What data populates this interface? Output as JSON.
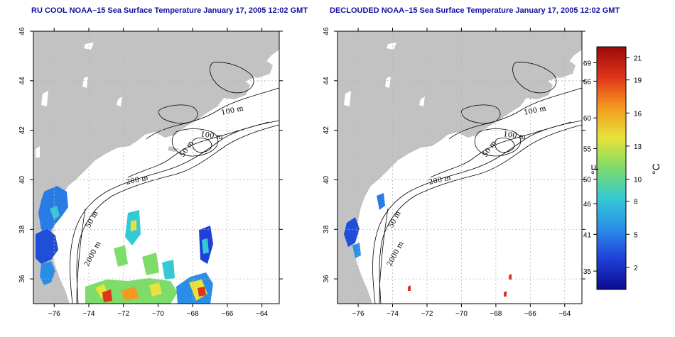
{
  "panels": [
    {
      "title": "RU COOL NOAA–15 Sea Surface Temperature January 17, 2005 12:02 GMT"
    },
    {
      "title": "DECLOUDED NOAA–15 Sea Surface Temperature January 17, 2005 12:02 GMT"
    }
  ],
  "axes": {
    "x_ticks": [
      "−76",
      "−74",
      "−72",
      "−70",
      "−68",
      "−66",
      "−64"
    ],
    "x_values": [
      -76,
      -74,
      -72,
      -70,
      -68,
      -66,
      -64
    ],
    "y_ticks": [
      "36",
      "38",
      "40",
      "42",
      "44",
      "46"
    ],
    "y_values": [
      36,
      38,
      40,
      42,
      44,
      46
    ],
    "lon_range": [
      -77.2,
      -63
    ],
    "lat_range": [
      35,
      46
    ]
  },
  "contour_labels": [
    "100 m",
    "100 m",
    "50 m",
    "200 m",
    "50 m",
    "2000 m"
  ],
  "colorbar": {
    "fahrenheit_label": "°F",
    "celsius_label": "°C",
    "fahrenheit_ticks": [
      "69",
      "66",
      "60",
      "55",
      "50",
      "46",
      "41",
      "35"
    ],
    "celsius_ticks": [
      "21",
      "19",
      "16",
      "13",
      "10",
      "8",
      "5",
      "2"
    ],
    "celsius_range": [
      0,
      22
    ],
    "colors": [
      "#0b0b8f",
      "#1f3fd8",
      "#2a8ee8",
      "#35c9d4",
      "#7ddc6a",
      "#e8e23a",
      "#f59a1f",
      "#e0341a",
      "#9c0a0a"
    ]
  },
  "colors": {
    "land": "#c2c2c2",
    "title": "#1010a0",
    "grid": "#b5b5b5"
  }
}
